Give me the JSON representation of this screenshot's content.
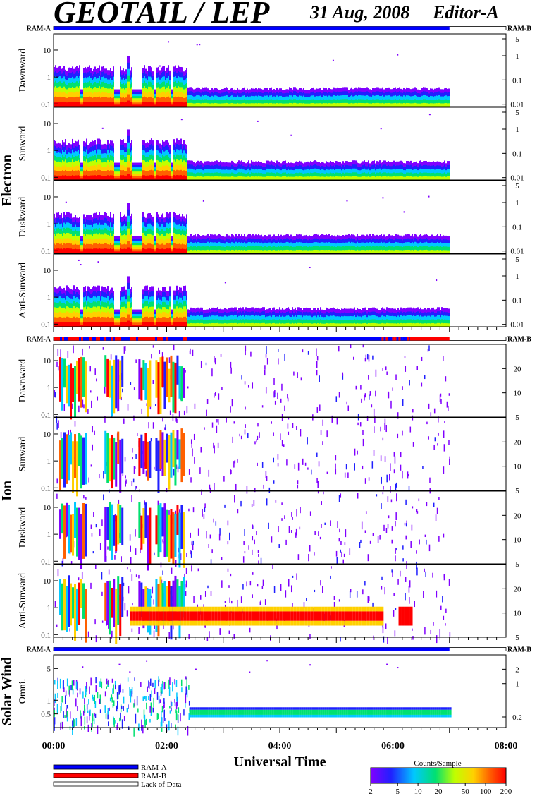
{
  "title": "GEOTAIL / LEP",
  "date": "31 Aug, 2008",
  "editor": "Editor-A",
  "chart_data": {
    "type": "heatmap",
    "x_range_hours": [
      0,
      8
    ],
    "data_end_hour": 7.0,
    "xlabel": "Universal Time",
    "x_ticks": [
      "00:00",
      "02:00",
      "04:00",
      "06:00",
      "08:00"
    ],
    "x_tick_hours": [
      0,
      2,
      4,
      6,
      8
    ],
    "groups": [
      {
        "name": "Electron",
        "ram_left": "RAM-A",
        "ram_right": "RAM-B",
        "ram_segments": [
          {
            "from": 0,
            "to": 7.0,
            "mode": "RAM-A"
          }
        ],
        "left_scale": "log",
        "left_ylim": [
          0.08,
          40
        ],
        "left_ticks": [
          {
            "v": 0.1,
            "t": "0.1"
          },
          {
            "v": 1,
            "t": "1"
          },
          {
            "v": 10,
            "t": "10"
          }
        ],
        "right_ylim": [
          0.008,
          8
        ],
        "right_ticks": [
          {
            "v": 0.01,
            "t": "0.01"
          },
          {
            "v": 0.1,
            "t": "0.1"
          },
          {
            "v": 1,
            "t": "1"
          },
          {
            "v": 5,
            "t": "5"
          }
        ],
        "panels": [
          "Dawnward",
          "Sunward",
          "Duskward",
          "Anti-Sunward"
        ]
      },
      {
        "name": "Ion",
        "ram_left": "RAM-A",
        "ram_right": "RAM-B",
        "ram_segments": [
          {
            "from": 0,
            "to": 2.4,
            "mode": "mixed"
          },
          {
            "from": 2.4,
            "to": 5.8,
            "mode": "RAM-A"
          },
          {
            "from": 5.8,
            "to": 6.3,
            "mode": "mixed"
          },
          {
            "from": 6.3,
            "to": 7.0,
            "mode": "RAM-B"
          }
        ],
        "left_scale": "log",
        "left_ylim": [
          0.08,
          40
        ],
        "left_ticks": [
          {
            "v": 0.1,
            "t": "0.1"
          },
          {
            "v": 1,
            "t": "1"
          },
          {
            "v": 10,
            "t": "10"
          }
        ],
        "right_ylim": [
          5,
          40
        ],
        "right_ticks": [
          {
            "v": 5,
            "t": "5"
          },
          {
            "v": 10,
            "t": "10"
          },
          {
            "v": 20,
            "t": "20"
          }
        ],
        "panels": [
          "Dawnward",
          "Sunward",
          "Duskward",
          "Anti-Sunward"
        ]
      },
      {
        "name": "Solar Wind",
        "ram_left": "RAM-A",
        "ram_right": "RAM-B",
        "ram_segments": [
          {
            "from": 0,
            "to": 7.0,
            "mode": "RAM-A"
          }
        ],
        "left_scale": "log",
        "left_ylim": [
          0.25,
          10
        ],
        "left_ticks": [
          {
            "v": 0.5,
            "t": "0.5"
          },
          {
            "v": 1,
            "t": "1"
          },
          {
            "v": 5,
            "t": "5"
          }
        ],
        "right_ylim": [
          0.12,
          4
        ],
        "right_ticks": [
          {
            "v": 0.2,
            "t": "0.2"
          },
          {
            "v": 1,
            "t": "1"
          },
          {
            "v": 2,
            "t": "2"
          }
        ],
        "panels": [
          "Omni."
        ]
      }
    ],
    "legend": [
      {
        "label": "RAM-A",
        "color": "#0000ff"
      },
      {
        "label": "RAM-B",
        "color": "#ff0000"
      },
      {
        "label": "Lack of Data",
        "color": "#ffffff"
      }
    ],
    "colorbar": {
      "title": "Counts/Sample",
      "scale": "log",
      "range": [
        2,
        200
      ],
      "ticks": [
        {
          "v": 2,
          "t": "2"
        },
        {
          "v": 5,
          "t": "5"
        },
        {
          "v": 10,
          "t": "10"
        },
        {
          "v": 20,
          "t": "20"
        },
        {
          "v": 50,
          "t": "50"
        },
        {
          "v": 100,
          "t": "100"
        },
        {
          "v": 200,
          "t": "200"
        }
      ]
    }
  }
}
